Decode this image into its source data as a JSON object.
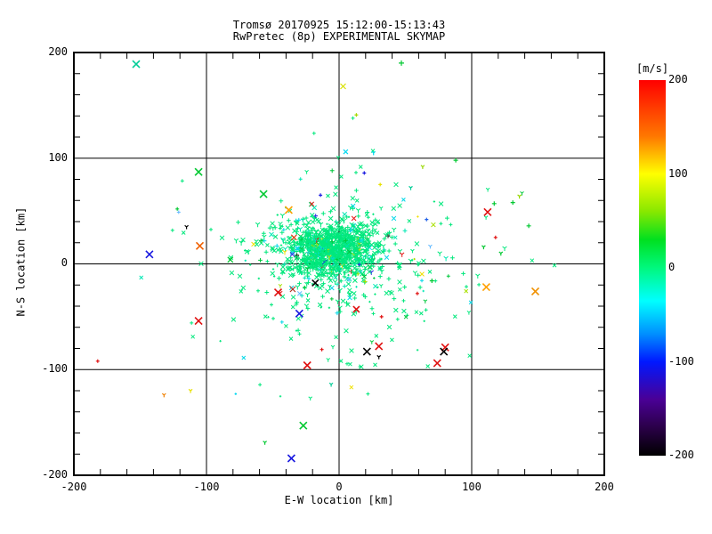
{
  "chart_data": {
    "type": "scatter",
    "title": "Tromsø 20170925 15:12:00-15:13:43",
    "subtitle": "RwPretec (8p) EXPERIMENTAL SKYMAP",
    "xlabel": "E-W location [km]",
    "ylabel": "N-S location [km]",
    "xlim": [
      -200,
      200
    ],
    "ylim": [
      -200,
      200
    ],
    "x_ticks": [
      "-200",
      "-100",
      "0",
      "100",
      "200"
    ],
    "y_ticks": [
      "200",
      "100",
      "0",
      "-100",
      "-200"
    ],
    "grid_values": [
      -100,
      0,
      100
    ],
    "minor_tick_step": 20,
    "grid": "on",
    "background": "#ffffff",
    "axis_color": "#000000",
    "colorbar": {
      "label": "[m/s]",
      "ticks": [
        "200",
        "100",
        "0",
        "-100",
        "-200"
      ],
      "tick_values": [
        200,
        100,
        0,
        -100,
        -200
      ],
      "max": 200,
      "min": -200,
      "stops": [
        [
          200,
          "#FF0000"
        ],
        [
          140,
          "#FF7800"
        ],
        [
          100,
          "#FFFF00"
        ],
        [
          60,
          "#88E800"
        ],
        [
          30,
          "#00E020"
        ],
        [
          0,
          "#00F87E"
        ],
        [
          -35,
          "#00FFFF"
        ],
        [
          -70,
          "#0090FF"
        ],
        [
          -100,
          "#0018FF"
        ],
        [
          -140,
          "#4A0096"
        ],
        [
          -170,
          "#2A0048"
        ],
        [
          -200,
          "#000000"
        ]
      ]
    },
    "seed": 1337,
    "palette": [
      [
        "#00E87C",
        0.8
      ],
      [
        "#00E8B4",
        0.06
      ],
      [
        "#00D8E8",
        0.055
      ],
      [
        "#00C83C",
        0.04
      ],
      [
        "#A8E000",
        0.012
      ],
      [
        "#F0E000",
        0.008
      ],
      [
        "#2828E0",
        0.008
      ],
      [
        "#60B8FF",
        0.005
      ],
      [
        "#E81414",
        0.004
      ],
      [
        "#101010",
        0.004
      ]
    ],
    "marker_weights": [
      [
        "x",
        0.38
      ],
      [
        "p",
        0.32
      ],
      [
        "y",
        0.2
      ],
      [
        "d",
        0.1
      ]
    ],
    "clusters": [
      {
        "n": 780,
        "cx": -8,
        "cy": 14,
        "sx": 16,
        "sy": 12,
        "size": 2.5
      },
      {
        "n": 400,
        "cx": -2,
        "cy": 6,
        "sx": 33,
        "sy": 26,
        "size": 2.4
      },
      {
        "n": 140,
        "cx": 0,
        "cy": -8,
        "sx": 60,
        "sy": 52,
        "size": 2
      }
    ],
    "outliers": [
      {
        "x": -153,
        "y": 189,
        "c": "#00CC96",
        "m": "x",
        "s": 4
      },
      {
        "x": 3,
        "y": 168,
        "c": "#D8E000",
        "m": "x",
        "s": 3
      },
      {
        "x": 47,
        "y": 190,
        "c": "#00C830",
        "m": "p",
        "s": 3
      },
      {
        "x": 13,
        "y": 141,
        "c": "#A8D800",
        "m": "p",
        "s": 2
      },
      {
        "x": 26,
        "y": 105,
        "c": "#00D8F0",
        "m": "y",
        "s": 2
      },
      {
        "x": 5,
        "y": 106,
        "c": "#00D8F0",
        "m": "x",
        "s": 2.5
      },
      {
        "x": -106,
        "y": 87,
        "c": "#00C830",
        "m": "x",
        "s": 4
      },
      {
        "x": -122,
        "y": 52,
        "c": "#00C830",
        "m": "p",
        "s": 2
      },
      {
        "x": -115,
        "y": 35,
        "c": "#000000",
        "m": "y",
        "s": 2
      },
      {
        "x": -105,
        "y": 17,
        "c": "#F06000",
        "m": "x",
        "s": 4
      },
      {
        "x": -143,
        "y": 9,
        "c": "#1818E0",
        "m": "x",
        "s": 4
      },
      {
        "x": -82,
        "y": 4,
        "c": "#00C830",
        "m": "x",
        "s": 3
      },
      {
        "x": -57,
        "y": 66,
        "c": "#00C830",
        "m": "x",
        "s": 4
      },
      {
        "x": -38,
        "y": 51,
        "c": "#FFA000",
        "m": "x",
        "s": 4
      },
      {
        "x": -14,
        "y": 65,
        "c": "#1818E0",
        "m": "p",
        "s": 2
      },
      {
        "x": -34,
        "y": 25,
        "c": "#E04010",
        "m": "x",
        "s": 3
      },
      {
        "x": 19,
        "y": 86,
        "c": "#1818E0",
        "m": "p",
        "s": 2
      },
      {
        "x": 31,
        "y": 75,
        "c": "#E8E000",
        "m": "p",
        "s": 2
      },
      {
        "x": -46,
        "y": -27,
        "c": "#E01010",
        "m": "x",
        "s": 4
      },
      {
        "x": -35,
        "y": -24,
        "c": "#B03020",
        "m": "x",
        "s": 3
      },
      {
        "x": -18,
        "y": -18,
        "c": "#000000",
        "m": "x",
        "s": 3.5
      },
      {
        "x": -30,
        "y": -47,
        "c": "#1818E0",
        "m": "x",
        "s": 4
      },
      {
        "x": -106,
        "y": -54,
        "c": "#E01010",
        "m": "x",
        "s": 4
      },
      {
        "x": -182,
        "y": -92,
        "c": "#E01010",
        "m": "p",
        "s": 2
      },
      {
        "x": -24,
        "y": -96,
        "c": "#E01010",
        "m": "x",
        "s": 4
      },
      {
        "x": -13,
        "y": -81,
        "c": "#E01010",
        "m": "p",
        "s": 2
      },
      {
        "x": -132,
        "y": -124,
        "c": "#F08000",
        "m": "y",
        "s": 2
      },
      {
        "x": -112,
        "y": -120,
        "c": "#E8E000",
        "m": "y",
        "s": 2
      },
      {
        "x": -78,
        "y": -123,
        "c": "#00D8F0",
        "m": "d",
        "s": 1.5
      },
      {
        "x": -6,
        "y": -114,
        "c": "#00CC96",
        "m": "y",
        "s": 2
      },
      {
        "x": -27,
        "y": -153,
        "c": "#00C830",
        "m": "x",
        "s": 4
      },
      {
        "x": -56,
        "y": -169,
        "c": "#00C830",
        "m": "y",
        "s": 2
      },
      {
        "x": -36,
        "y": -184,
        "c": "#1818E0",
        "m": "x",
        "s": 4
      },
      {
        "x": 13,
        "y": -43,
        "c": "#E01010",
        "m": "x",
        "s": 3.5
      },
      {
        "x": 32,
        "y": -50,
        "c": "#E01010",
        "m": "p",
        "s": 2
      },
      {
        "x": 30,
        "y": -78,
        "c": "#E01010",
        "m": "x",
        "s": 4
      },
      {
        "x": 21,
        "y": -83,
        "c": "#000000",
        "m": "x",
        "s": 4
      },
      {
        "x": 30,
        "y": -88,
        "c": "#000000",
        "m": "y",
        "s": 2
      },
      {
        "x": 80,
        "y": -79,
        "c": "#E01010",
        "m": "x",
        "s": 4
      },
      {
        "x": 79,
        "y": -83,
        "c": "#000000",
        "m": "x",
        "s": 4
      },
      {
        "x": 74,
        "y": -94,
        "c": "#E01010",
        "m": "x",
        "s": 4
      },
      {
        "x": 59,
        "y": -28,
        "c": "#E01010",
        "m": "p",
        "s": 2
      },
      {
        "x": 70,
        "y": -16,
        "c": "#00C830",
        "m": "p",
        "s": 2.5
      },
      {
        "x": 111,
        "y": -22,
        "c": "#FFA000",
        "m": "x",
        "s": 4
      },
      {
        "x": 148,
        "y": -26,
        "c": "#F09000",
        "m": "x",
        "s": 4
      },
      {
        "x": 112,
        "y": 49,
        "c": "#E01010",
        "m": "x",
        "s": 4
      },
      {
        "x": 118,
        "y": 25,
        "c": "#E01010",
        "m": "p",
        "s": 2
      },
      {
        "x": 117,
        "y": 57,
        "c": "#00C830",
        "m": "p",
        "s": 2.5
      },
      {
        "x": 131,
        "y": 58,
        "c": "#00C830",
        "m": "p",
        "s": 2.5
      },
      {
        "x": 136,
        "y": 64,
        "c": "#98D800",
        "m": "y",
        "s": 2
      },
      {
        "x": 143,
        "y": 36,
        "c": "#00C830",
        "m": "p",
        "s": 2.5
      },
      {
        "x": 122,
        "y": 10,
        "c": "#00C830",
        "m": "y",
        "s": 2
      },
      {
        "x": 109,
        "y": 16,
        "c": "#00C830",
        "m": "y",
        "s": 2
      },
      {
        "x": 63,
        "y": 92,
        "c": "#98D800",
        "m": "y",
        "s": 2
      },
      {
        "x": 88,
        "y": 98,
        "c": "#00C830",
        "m": "p",
        "s": 2.5
      },
      {
        "x": 66,
        "y": 42,
        "c": "#2060E8",
        "m": "p",
        "s": 2
      },
      {
        "x": 54,
        "y": 72,
        "c": "#00CC96",
        "m": "y",
        "s": 2
      }
    ]
  }
}
